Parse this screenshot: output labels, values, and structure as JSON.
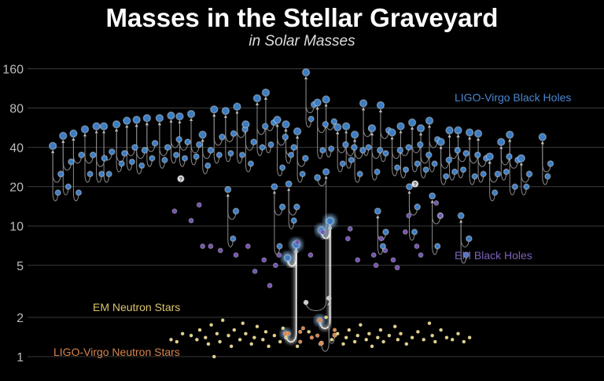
{
  "chart_data": {
    "type": "scatter",
    "title": "Masses in the Stellar Graveyard",
    "subtitle": "in Solar Masses",
    "ylabel": "Solar Masses",
    "yscale": "log",
    "ylim": [
      0.9,
      190
    ],
    "xlim": [
      0,
      100
    ],
    "y_ticks": [
      1,
      2,
      5,
      10,
      20,
      40,
      80,
      160
    ],
    "grid": true,
    "colors": {
      "ligo_bh": "#3b7cc2",
      "em_bh": "#7357ad",
      "em_ns": "#e3cf7a",
      "ligo_ns": "#d9874a",
      "line": "#8a8a8a"
    },
    "legend": [
      {
        "name": "LIGO-Virgo Black Holes",
        "color": "#4a86cf"
      },
      {
        "name": "EM Black Holes",
        "color": "#7c63bc"
      },
      {
        "name": "EM Neutron Stars",
        "color": "#d9c46b"
      },
      {
        "name": "LIGO-Virgo Neutron Stars",
        "color": "#d6844c"
      }
    ],
    "ligo_bh_mergers": [
      [
        4.4,
        41,
        25,
        18
      ],
      [
        6.2,
        49,
        31,
        20
      ],
      [
        8,
        51,
        35,
        18
      ],
      [
        10,
        55,
        35,
        25
      ],
      [
        12,
        58,
        33,
        25
      ],
      [
        13.3,
        58,
        37,
        25
      ],
      [
        15.5,
        60,
        36,
        30
      ],
      [
        17.3,
        64,
        40,
        31
      ],
      [
        19,
        65,
        38,
        29
      ],
      [
        20.8,
        67,
        43,
        33
      ],
      [
        23,
        67,
        40,
        32
      ],
      [
        25,
        70,
        46,
        35
      ],
      [
        26.5,
        69,
        44,
        33
      ],
      [
        28.5,
        72,
        42,
        34
      ],
      [
        30.5,
        50,
        38,
        29
      ],
      [
        32.5,
        78,
        48,
        35
      ],
      [
        34.5,
        76,
        51,
        36
      ],
      [
        36.5,
        82,
        55,
        35
      ],
      [
        38,
        60,
        44,
        30
      ],
      [
        40,
        95,
        58,
        40
      ],
      [
        41.5,
        105,
        62,
        42
      ],
      [
        43.5,
        65,
        48,
        28
      ],
      [
        45,
        60,
        40,
        35
      ],
      [
        47,
        53,
        33,
        25
      ],
      [
        48.5,
        150,
        85,
        66
      ],
      [
        50.5,
        88,
        60,
        38
      ],
      [
        52,
        93,
        63,
        39
      ],
      [
        54,
        57,
        42,
        30
      ],
      [
        55.5,
        58,
        40,
        32
      ],
      [
        57,
        50,
        38,
        25
      ],
      [
        58.5,
        87,
        56,
        40
      ],
      [
        60,
        56,
        38,
        26
      ],
      [
        61.5,
        84,
        54,
        36
      ],
      [
        63.5,
        52,
        38,
        28
      ],
      [
        65,
        58,
        40,
        27
      ],
      [
        67,
        62,
        42,
        30
      ],
      [
        68.5,
        56,
        35,
        27
      ],
      [
        70,
        64,
        46,
        30
      ],
      [
        72,
        44,
        32,
        24
      ],
      [
        73.5,
        54,
        38,
        26
      ],
      [
        75,
        54,
        36,
        27
      ],
      [
        77,
        52,
        35,
        24
      ],
      [
        78.5,
        51,
        33,
        25
      ],
      [
        80.5,
        34,
        25,
        18
      ],
      [
        82.5,
        44,
        34,
        26
      ],
      [
        84,
        50,
        32,
        20
      ],
      [
        86,
        33,
        25,
        20
      ],
      [
        89.7,
        48,
        30,
        24
      ],
      [
        34.9,
        19,
        13,
        8
      ],
      [
        43,
        20,
        14,
        7
      ],
      [
        45.5,
        21,
        14,
        11
      ],
      [
        61,
        13,
        9,
        7
      ],
      [
        66.5,
        20,
        14,
        9
      ],
      [
        70.5,
        17,
        12,
        7
      ],
      [
        75.5,
        12,
        8,
        6
      ]
    ],
    "nsbh_mergers": [
      [
        46.8,
        7.2,
        5.7,
        1.5
      ],
      [
        52.7,
        10.9,
        9.3,
        1.9
      ]
    ],
    "bns_merger": [
      52.5,
      2.8,
      1.46,
      1.27
    ],
    "asymmetric_merger": [
      52,
      26,
      23.5,
      2.6
    ],
    "unknown_objects": [
      [
        26.7,
        23
      ],
      [
        67.5,
        21
      ]
    ],
    "unknown_symbol": "?",
    "em_bh": [
      [
        25.6,
        13
      ],
      [
        28.5,
        11
      ],
      [
        29.9,
        14.5
      ],
      [
        30.5,
        7
      ],
      [
        31.9,
        7
      ],
      [
        33.6,
        6.5
      ],
      [
        36.3,
        6
      ],
      [
        38.4,
        7
      ],
      [
        39.6,
        4.5
      ],
      [
        41.2,
        5.5
      ],
      [
        42.2,
        3.5
      ],
      [
        43.2,
        5
      ],
      [
        43.8,
        6
      ],
      [
        47,
        7.5
      ],
      [
        49.3,
        6
      ],
      [
        51.4,
        9
      ],
      [
        55.8,
        8
      ],
      [
        56.2,
        9.5
      ],
      [
        57.5,
        5.5
      ],
      [
        60.3,
        6
      ],
      [
        60.7,
        5
      ],
      [
        61.6,
        8
      ],
      [
        62.3,
        6.5
      ],
      [
        63.7,
        5.5
      ],
      [
        64.4,
        4.8
      ],
      [
        65.8,
        9
      ],
      [
        66.4,
        12
      ],
      [
        67.8,
        7
      ],
      [
        68.5,
        6
      ],
      [
        71.2,
        15
      ],
      [
        71.9,
        12
      ]
    ],
    "em_ns": [
      [
        28.5,
        1.45
      ],
      [
        29.5,
        1.35
      ],
      [
        30,
        1.6
      ],
      [
        31,
        1.4
      ],
      [
        31.5,
        1.25
      ],
      [
        32,
        1.75
      ],
      [
        33,
        1.5
      ],
      [
        33.5,
        1.3
      ],
      [
        34,
        1.9
      ],
      [
        35,
        1.45
      ],
      [
        35.5,
        1.2
      ],
      [
        36,
        1.6
      ],
      [
        37,
        1.35
      ],
      [
        37.5,
        1.8
      ],
      [
        38,
        1.5
      ],
      [
        39,
        1.25
      ],
      [
        39.5,
        1.4
      ],
      [
        40,
        1.7
      ],
      [
        41,
        1.35
      ],
      [
        41.5,
        1.55
      ],
      [
        42,
        1.2
      ],
      [
        43,
        1.45
      ],
      [
        44,
        1.3
      ],
      [
        44.5,
        1.65
      ],
      [
        45,
        1.4
      ],
      [
        49,
        1.55
      ],
      [
        52,
        2.0
      ],
      [
        53,
        1.35
      ],
      [
        54,
        1.5
      ],
      [
        55,
        1.25
      ],
      [
        55.5,
        1.4
      ],
      [
        56,
        1.6
      ],
      [
        57,
        1.3
      ],
      [
        57.5,
        1.45
      ],
      [
        58,
        1.75
      ],
      [
        59,
        1.35
      ],
      [
        59.5,
        1.5
      ],
      [
        60,
        1.2
      ],
      [
        61,
        1.4
      ],
      [
        61.5,
        1.6
      ],
      [
        62,
        1.3
      ],
      [
        63,
        1.45
      ],
      [
        64,
        1.7
      ],
      [
        64.5,
        1.35
      ],
      [
        65,
        1.5
      ],
      [
        66,
        1.25
      ],
      [
        67,
        1.4
      ],
      [
        68,
        1.55
      ],
      [
        69,
        1.35
      ],
      [
        70,
        1.8
      ],
      [
        70.5,
        1.45
      ],
      [
        71,
        1.3
      ],
      [
        72,
        1.6
      ],
      [
        73,
        1.4
      ],
      [
        74,
        1.35
      ],
      [
        75,
        1.5
      ],
      [
        76,
        1.3
      ],
      [
        77,
        1.4
      ],
      [
        25,
        1.35
      ],
      [
        26,
        1.3
      ],
      [
        27,
        1.5
      ],
      [
        32.5,
        1.0
      ],
      [
        47,
        1.2
      ]
    ],
    "ligo_ns": [
      [
        45.5,
        1.5
      ],
      [
        47.5,
        1.3
      ],
      [
        48,
        1.65
      ],
      [
        49.5,
        1.4
      ],
      [
        51,
        1.25
      ],
      [
        50.5,
        1.45
      ],
      [
        53.5,
        1.6
      ],
      [
        47.5,
        1.55
      ]
    ]
  }
}
